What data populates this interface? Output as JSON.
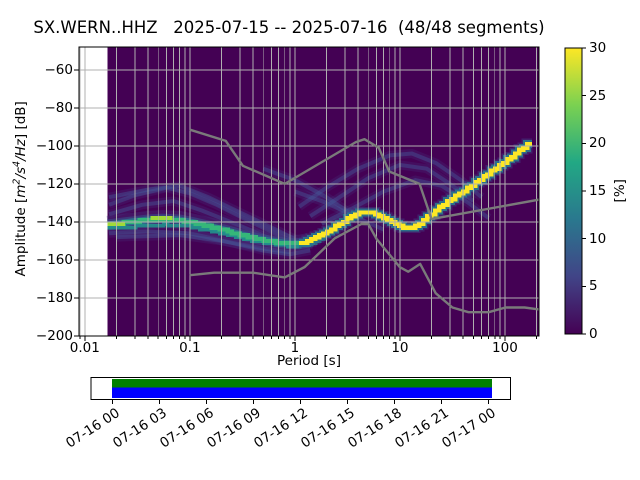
{
  "title": "SX.WERN..HHZ   2025-07-15 -- 2025-07-16  (48/48 segments)",
  "main_axes": {
    "xlabel": "Period [s]",
    "ylabel_parts": [
      {
        "t": "Amplitude ["
      },
      {
        "t": "m",
        "i": 1
      },
      {
        "t": "2",
        "i": 1,
        "sup": 1
      },
      {
        "t": "/s",
        "i": 1
      },
      {
        "t": "4",
        "i": 1,
        "sup": 1
      },
      {
        "t": "/Hz",
        "i": 1
      },
      {
        "t": "] [dB]"
      }
    ],
    "xlim": [
      0.0088,
      211
    ],
    "ylim": [
      -200,
      -48
    ],
    "x_ticks": [
      {
        "v": 0.01,
        "label": "0.01"
      },
      {
        "v": 0.1,
        "label": "0.1"
      },
      {
        "v": 1,
        "label": "1"
      },
      {
        "v": 10,
        "label": "10"
      },
      {
        "v": 100,
        "label": "100"
      }
    ],
    "y_ticks": [
      {
        "v": -60,
        "label": "−60"
      },
      {
        "v": -80,
        "label": "−80"
      },
      {
        "v": -100,
        "label": "−100"
      },
      {
        "v": -120,
        "label": "−120"
      },
      {
        "v": -140,
        "label": "−140"
      },
      {
        "v": -160,
        "label": "−160"
      },
      {
        "v": -180,
        "label": "−180"
      },
      {
        "v": -200,
        "label": "−200"
      }
    ]
  },
  "colorbar": {
    "label": "[%]",
    "min": 0,
    "max": 30,
    "ticks": [
      {
        "v": 0,
        "label": "0"
      },
      {
        "v": 5,
        "label": "5"
      },
      {
        "v": 10,
        "label": "10"
      },
      {
        "v": 15,
        "label": "15"
      },
      {
        "v": 20,
        "label": "20"
      },
      {
        "v": 25,
        "label": "25"
      },
      {
        "v": 30,
        "label": "30"
      }
    ],
    "colormap": "viridis",
    "gradient_stops": [
      "#440154",
      "#414487",
      "#2a788e",
      "#22a884",
      "#7ad151",
      "#fde725"
    ]
  },
  "timeline": {
    "tick_labels": [
      "07-16 00",
      "07-16 03",
      "07-16 06",
      "07-16 09",
      "07-16 12",
      "07-16 15",
      "07-16 18",
      "07-16 21",
      "07-17 00"
    ],
    "green_bar_color": "#008000",
    "blue_bar_color": "#0000ff"
  },
  "colors": {
    "mesh_background": "#440154",
    "grid": "#b0b0b0",
    "noise_model": "#7a7a7a",
    "psd_core_short": "#35b779",
    "psd_core_short_casing": "#21918c",
    "psd_core_long": "#fde725",
    "psd_casing": "#2a788e",
    "psd_casing_dark": "#414487",
    "psd_halo_outer": "#46327e",
    "psd_halo_mid": "#3b528b",
    "psd_bright": "#a0da39",
    "faint_trace": "#465a9b",
    "spine": "#000000"
  },
  "chart_data": {
    "type": "heatmap",
    "title": "SX.WERN..HHZ   2025-07-15 -- 2025-07-16  (48/48 segments)",
    "xlabel": "Period [s]",
    "ylabel": "Amplitude [m^2/s^4/Hz] [dB]",
    "x_scale": "log",
    "xlim": [
      0.0088,
      211
    ],
    "ylim": [
      -200,
      -48
    ],
    "colorbar_label": "[%]",
    "colorbar_range": [
      0,
      30
    ],
    "segments_used": 48,
    "segments_total": 48,
    "mesh_period_range": [
      0.0165,
      210
    ],
    "psd_mode_line": [
      [
        0.0165,
        -141.5
      ],
      [
        0.02,
        -141
      ],
      [
        0.028,
        -140
      ],
      [
        0.04,
        -139
      ],
      [
        0.055,
        -138.5
      ],
      [
        0.08,
        -139
      ],
      [
        0.11,
        -140.5
      ],
      [
        0.16,
        -142.5
      ],
      [
        0.22,
        -144.5
      ],
      [
        0.32,
        -147
      ],
      [
        0.45,
        -149
      ],
      [
        0.65,
        -150.5
      ],
      [
        0.9,
        -151.5
      ],
      [
        1.1,
        -151.5
      ],
      [
        1.35,
        -150.5
      ],
      [
        1.7,
        -148
      ],
      [
        2.2,
        -144.5
      ],
      [
        2.8,
        -141
      ],
      [
        3.5,
        -137.5
      ],
      [
        4.3,
        -135
      ],
      [
        5,
        -134.5
      ],
      [
        6,
        -135.5
      ],
      [
        7.5,
        -138.5
      ],
      [
        9,
        -141
      ],
      [
        11,
        -142.5
      ],
      [
        13,
        -143
      ],
      [
        15.5,
        -141.5
      ],
      [
        19,
        -137.5
      ],
      [
        24,
        -133
      ],
      [
        30,
        -129
      ],
      [
        40,
        -124.5
      ],
      [
        52,
        -120
      ],
      [
        68,
        -115.5
      ],
      [
        88,
        -111
      ],
      [
        115,
        -106.5
      ],
      [
        150,
        -101.5
      ],
      [
        180,
        -98.5
      ]
    ],
    "psd_secondary_line": [
      [
        0.0165,
        -143.5
      ],
      [
        0.03,
        -142.5
      ],
      [
        0.06,
        -141.5
      ],
      [
        0.1,
        -142.5
      ],
      [
        0.16,
        -144.5
      ],
      [
        0.25,
        -147
      ],
      [
        0.4,
        -149.5
      ],
      [
        0.7,
        -152
      ],
      [
        1,
        -153
      ],
      [
        1.5,
        -151.5
      ],
      [
        2,
        -148
      ]
    ],
    "bright_segments": [
      [
        [
          0.0165,
          -141.5
        ],
        [
          0.024,
          -141.5
        ]
      ],
      [
        [
          0.042,
          -138.5
        ],
        [
          0.068,
          -138.5
        ]
      ]
    ],
    "noise_models": {
      "nhnm": [
        [
          0.1,
          -91.5
        ],
        [
          0.22,
          -97.4
        ],
        [
          0.32,
          -110.5
        ],
        [
          0.8,
          -120
        ],
        [
          3.8,
          -98
        ],
        [
          4.6,
          -96.5
        ],
        [
          6.3,
          -101
        ],
        [
          7.9,
          -113.5
        ],
        [
          15.4,
          -120
        ],
        [
          20,
          -138.5
        ],
        [
          354.8,
          -126
        ]
      ],
      "nlnm": [
        [
          0.1,
          -168
        ],
        [
          0.17,
          -166.7
        ],
        [
          0.4,
          -166.7
        ],
        [
          0.8,
          -169.2
        ],
        [
          1.24,
          -163.7
        ],
        [
          2.4,
          -148.6
        ],
        [
          4.3,
          -141.1
        ],
        [
          5,
          -141.1
        ],
        [
          6,
          -149
        ],
        [
          10,
          -163.8
        ],
        [
          12,
          -166.2
        ],
        [
          15.6,
          -162.1
        ],
        [
          21.9,
          -177.5
        ],
        [
          31.6,
          -185
        ],
        [
          45,
          -187.5
        ],
        [
          70,
          -187.5
        ],
        [
          101,
          -185
        ],
        [
          154,
          -185
        ],
        [
          328,
          -187.5
        ]
      ]
    },
    "faint_traces": [
      [
        [
          0.017,
          -127
        ],
        [
          0.04,
          -123
        ],
        [
          0.08,
          -121
        ],
        [
          0.15,
          -127
        ],
        [
          0.3,
          -135
        ],
        [
          0.6,
          -143
        ],
        [
          1,
          -149
        ]
      ],
      [
        [
          0.017,
          -131
        ],
        [
          0.03,
          -126
        ],
        [
          0.06,
          -122
        ],
        [
          0.1,
          -125
        ],
        [
          0.18,
          -131
        ],
        [
          0.35,
          -139
        ],
        [
          0.7,
          -147
        ],
        [
          1.1,
          -151
        ]
      ],
      [
        [
          0.017,
          -136
        ],
        [
          0.035,
          -131
        ],
        [
          0.07,
          -129
        ],
        [
          0.13,
          -134
        ],
        [
          0.3,
          -142
        ],
        [
          0.6,
          -149
        ],
        [
          1,
          -152
        ]
      ],
      [
        [
          0.017,
          -146
        ],
        [
          0.04,
          -145
        ],
        [
          0.1,
          -146
        ],
        [
          0.25,
          -151
        ],
        [
          0.5,
          -155
        ],
        [
          0.9,
          -157
        ],
        [
          1.4,
          -155
        ]
      ],
      [
        [
          0.02,
          -148
        ],
        [
          0.08,
          -147
        ],
        [
          0.2,
          -150
        ],
        [
          0.5,
          -154
        ],
        [
          0.9,
          -156
        ]
      ],
      [
        [
          1.1,
          -132
        ],
        [
          2,
          -122
        ],
        [
          4,
          -112
        ],
        [
          8,
          -105
        ],
        [
          13,
          -104
        ],
        [
          22,
          -109
        ],
        [
          38,
          -118
        ],
        [
          60,
          -127
        ]
      ],
      [
        [
          1.4,
          -137
        ],
        [
          2.5,
          -128
        ],
        [
          5,
          -117
        ],
        [
          10,
          -110
        ],
        [
          18,
          -112
        ],
        [
          30,
          -120
        ],
        [
          50,
          -129
        ]
      ],
      [
        [
          1.8,
          -141
        ],
        [
          3.5,
          -133
        ],
        [
          7,
          -124
        ],
        [
          14,
          -118
        ],
        [
          25,
          -121
        ],
        [
          45,
          -130
        ],
        [
          70,
          -138
        ]
      ],
      [
        [
          1,
          -124
        ],
        [
          2,
          -130
        ],
        [
          4,
          -138
        ],
        [
          7,
          -144
        ]
      ],
      [
        [
          0.5,
          -112
        ],
        [
          1,
          -118
        ],
        [
          2,
          -127
        ],
        [
          3.5,
          -136
        ]
      ]
    ]
  }
}
